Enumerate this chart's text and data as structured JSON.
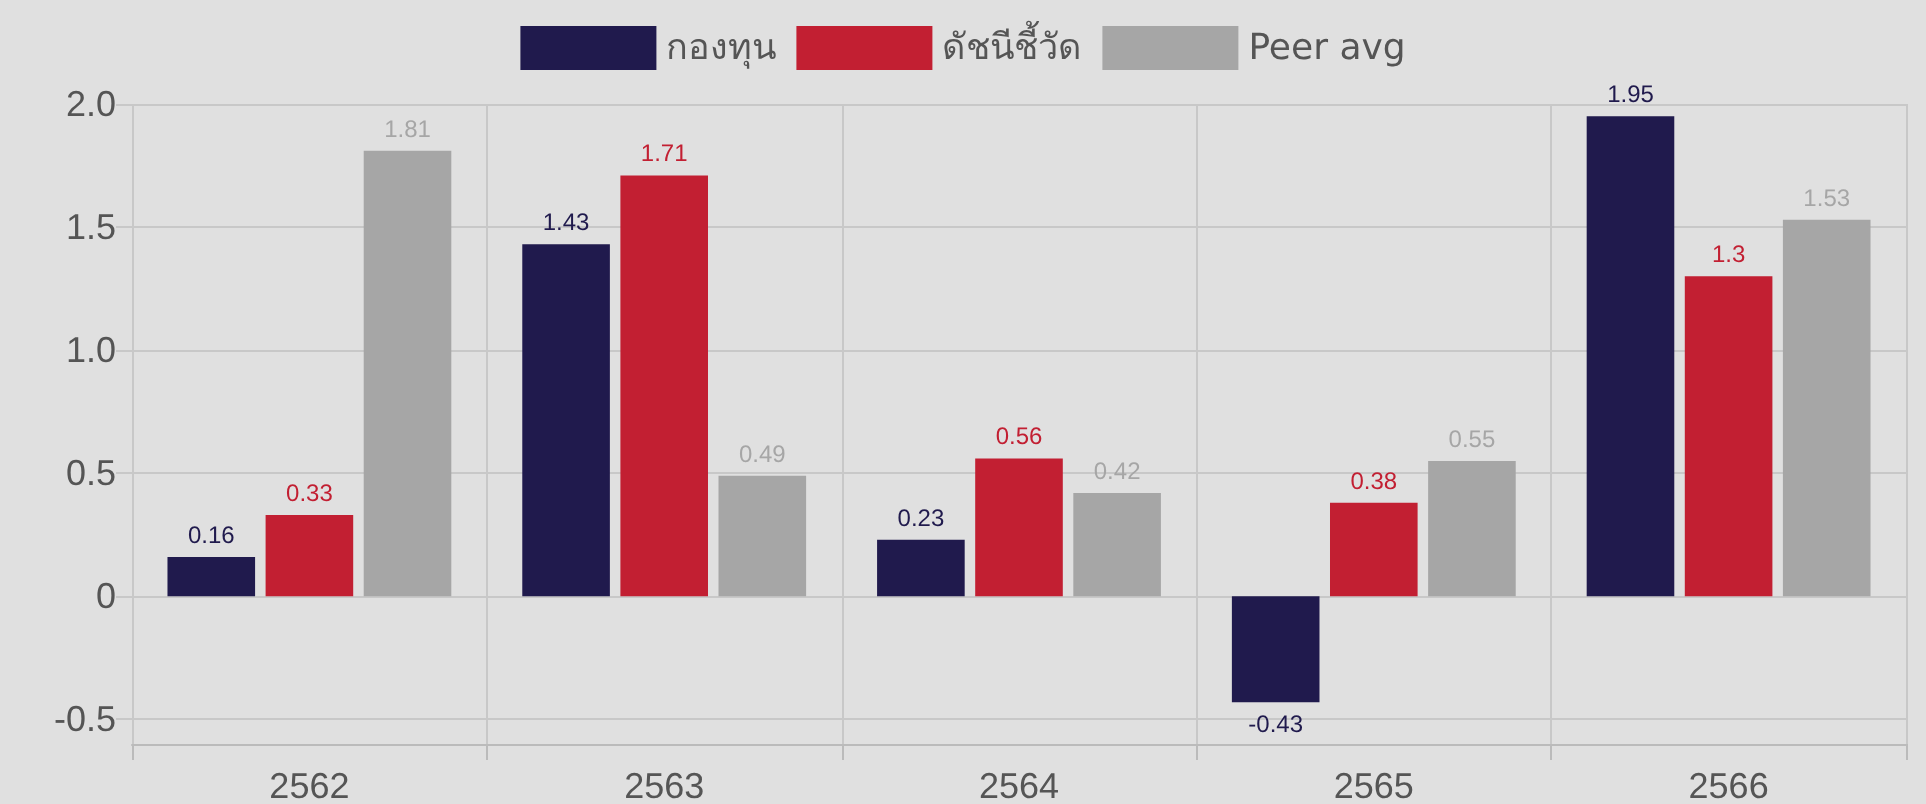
{
  "chart_data": {
    "type": "bar",
    "categories": [
      "2562",
      "2563",
      "2564",
      "2565",
      "2566"
    ],
    "series": [
      {
        "name": "กองทุน",
        "color": "#201a4d",
        "values": [
          0.16,
          1.43,
          0.23,
          -0.43,
          1.95
        ]
      },
      {
        "name": "ดัชนีชี้วัด",
        "color": "#c21f32",
        "values": [
          0.33,
          1.71,
          0.56,
          0.38,
          1.3
        ]
      },
      {
        "name": "Peer avg",
        "color": "#a6a6a6",
        "values": [
          1.81,
          0.49,
          0.42,
          0.55,
          1.53
        ]
      }
    ],
    "ylim": [
      -0.6,
      2.0
    ],
    "yticks": [
      -0.5,
      0,
      0.5,
      {
        "value": 1,
        "label": "1.0"
      },
      1.5,
      {
        "value": 2,
        "label": "2.0"
      }
    ],
    "grid": true,
    "legend": "top",
    "data_labels": true
  }
}
